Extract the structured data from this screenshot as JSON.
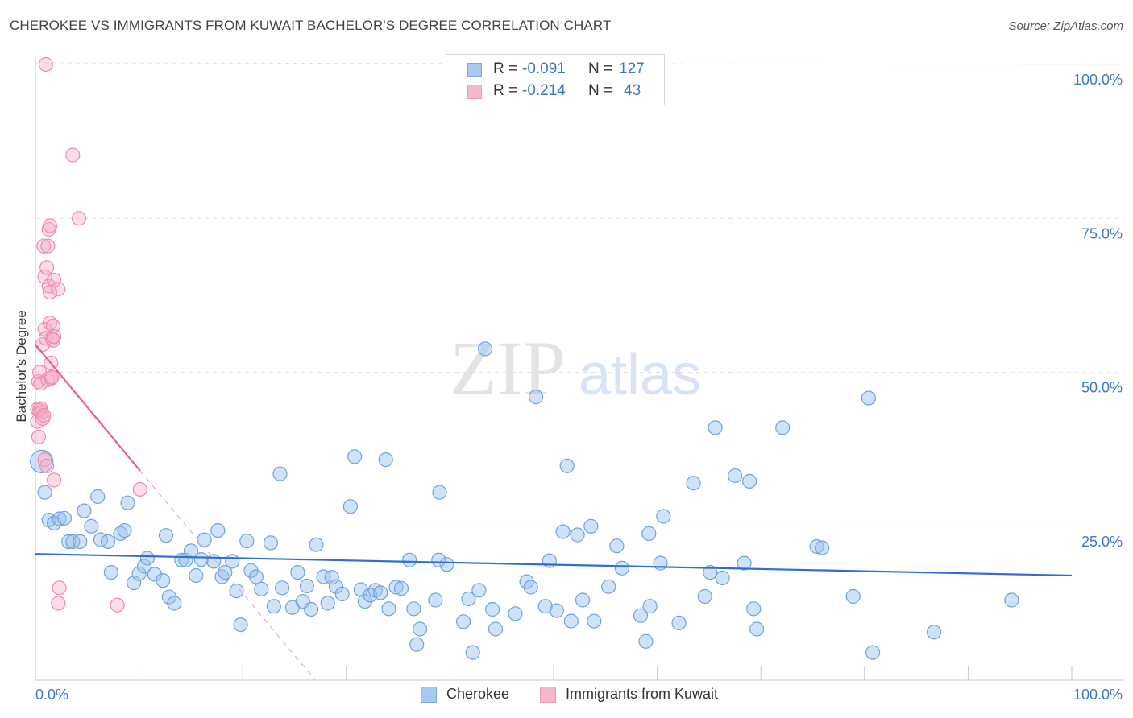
{
  "title": "CHEROKEE VS IMMIGRANTS FROM KUWAIT BACHELOR'S DEGREE CORRELATION CHART",
  "source": "Source: ZipAtlas.com",
  "watermark": {
    "zip": "ZIP",
    "atlas": "atlas"
  },
  "stats": [
    {
      "r_label": "R =",
      "r_value": "-0.091",
      "n_label": "N =",
      "n_value": "127",
      "color": "#a9c8ee"
    },
    {
      "r_label": "R =",
      "r_value": "-0.214",
      "n_label": "N =",
      "n_value": "43",
      "color": "#f5b8c9"
    }
  ],
  "legend": [
    {
      "label": "Cherokee",
      "color": "#a9c8ee"
    },
    {
      "label": "Immigrants from Kuwait",
      "color": "#f5b8c9"
    }
  ],
  "chart_data": {
    "type": "scatter",
    "ylabel": "Bachelor's Degree",
    "xlim": [
      0,
      100
    ],
    "ylim": [
      0,
      100
    ],
    "x_tick_labels": [
      "0.0%",
      "100.0%"
    ],
    "y_tick_labels": [
      "25.0%",
      "50.0%",
      "75.0%",
      "100.0%"
    ],
    "y_ticks": [
      25,
      50,
      75,
      100
    ],
    "series": [
      {
        "name": "Cherokee",
        "color": "#6fa3e0",
        "trend": {
          "x0": 0,
          "y0": 20.5,
          "x1": 100,
          "y1": 17.0
        },
        "points": [
          [
            0.6,
            35.5
          ],
          [
            0.9,
            30.5
          ],
          [
            1.3,
            26
          ],
          [
            1.8,
            25.5
          ],
          [
            2.3,
            26.2
          ],
          [
            2.8,
            26.3
          ],
          [
            3.2,
            22.5
          ],
          [
            3.6,
            22.5
          ],
          [
            4.3,
            22.5
          ],
          [
            4.7,
            27.5
          ],
          [
            5.4,
            25
          ],
          [
            6,
            29.8
          ],
          [
            6.3,
            22.8
          ],
          [
            7,
            22.5
          ],
          [
            7.3,
            17.5
          ],
          [
            8.2,
            23.8
          ],
          [
            8.6,
            24.3
          ],
          [
            8.9,
            28.8
          ],
          [
            9.5,
            15.8
          ],
          [
            10,
            17.3
          ],
          [
            10.5,
            18.5
          ],
          [
            10.8,
            19.8
          ],
          [
            11.5,
            17.2
          ],
          [
            12.3,
            16.2
          ],
          [
            12.6,
            23.5
          ],
          [
            12.9,
            13.5
          ],
          [
            13.4,
            12.5
          ],
          [
            14.1,
            19.5
          ],
          [
            14.5,
            19.5
          ],
          [
            15,
            21
          ],
          [
            15.5,
            17
          ],
          [
            16,
            19.6
          ],
          [
            16.3,
            22.8
          ],
          [
            17.2,
            19.3
          ],
          [
            17.6,
            24.3
          ],
          [
            18,
            16.8
          ],
          [
            18.3,
            17.5
          ],
          [
            19,
            19.3
          ],
          [
            19.4,
            14.5
          ],
          [
            19.8,
            9
          ],
          [
            20.4,
            22.6
          ],
          [
            20.8,
            17.8
          ],
          [
            21.3,
            16.8
          ],
          [
            21.8,
            14.8
          ],
          [
            22.7,
            22.3
          ],
          [
            23,
            12
          ],
          [
            23.6,
            33.5
          ],
          [
            23.8,
            15
          ],
          [
            24.8,
            11.8
          ],
          [
            25.3,
            17.5
          ],
          [
            25.8,
            12.8
          ],
          [
            26.2,
            15.3
          ],
          [
            26.6,
            11.5
          ],
          [
            27.1,
            22
          ],
          [
            27.8,
            16.8
          ],
          [
            28.2,
            12.5
          ],
          [
            28.6,
            16.7
          ],
          [
            29,
            15.2
          ],
          [
            29.6,
            14
          ],
          [
            30.4,
            28.2
          ],
          [
            30.8,
            36.3
          ],
          [
            31.4,
            14.7
          ],
          [
            31.8,
            12.8
          ],
          [
            32.3,
            13.8
          ],
          [
            32.8,
            14.6
          ],
          [
            33.3,
            14.2
          ],
          [
            33.8,
            35.8
          ],
          [
            34.1,
            11.6
          ],
          [
            34.8,
            15.1
          ],
          [
            35.3,
            14.9
          ],
          [
            36.1,
            19.5
          ],
          [
            36.5,
            11.6
          ],
          [
            36.8,
            5.8
          ],
          [
            37.1,
            8.3
          ],
          [
            38.6,
            13
          ],
          [
            38.9,
            19.5
          ],
          [
            39,
            30.5
          ],
          [
            39.7,
            18.8
          ],
          [
            41.3,
            9.5
          ],
          [
            41.8,
            13.2
          ],
          [
            42.2,
            4.5
          ],
          [
            42.8,
            14.6
          ],
          [
            43.4,
            53.8
          ],
          [
            44.1,
            11.5
          ],
          [
            44.4,
            8.3
          ],
          [
            46.3,
            10.8
          ],
          [
            47.4,
            16
          ],
          [
            47.8,
            15.1
          ],
          [
            48.3,
            46
          ],
          [
            49.2,
            12
          ],
          [
            49.6,
            19.4
          ],
          [
            50.3,
            11.3
          ],
          [
            50.9,
            24.1
          ],
          [
            51.3,
            34.8
          ],
          [
            51.7,
            9.6
          ],
          [
            52.3,
            23.6
          ],
          [
            52.8,
            13
          ],
          [
            53.6,
            25
          ],
          [
            53.9,
            9.6
          ],
          [
            55.3,
            15.2
          ],
          [
            56.1,
            21.8
          ],
          [
            56.6,
            18.2
          ],
          [
            58.4,
            10.5
          ],
          [
            58.9,
            6.3
          ],
          [
            59.2,
            23.8
          ],
          [
            59.3,
            12
          ],
          [
            60.3,
            19
          ],
          [
            60.6,
            26.6
          ],
          [
            62.1,
            9.3
          ],
          [
            63.5,
            32
          ],
          [
            64.6,
            13.6
          ],
          [
            65.1,
            17.5
          ],
          [
            65.6,
            41
          ],
          [
            66.3,
            16.6
          ],
          [
            67.5,
            33.2
          ],
          [
            68.4,
            19
          ],
          [
            68.9,
            32.3
          ],
          [
            69.3,
            11.6
          ],
          [
            69.6,
            8.3
          ],
          [
            72.1,
            41
          ],
          [
            75.4,
            21.7
          ],
          [
            75.9,
            21.5
          ],
          [
            78.9,
            13.6
          ],
          [
            80.4,
            45.8
          ],
          [
            80.8,
            4.5
          ],
          [
            86.7,
            7.8
          ],
          [
            94.2,
            13
          ]
        ]
      },
      {
        "name": "Immigrants from Kuwait",
        "color": "#f08aaa",
        "trend": {
          "x0": 0,
          "y0": 54.5,
          "x1": 10.1,
          "y1": 34.0,
          "dashed_x1": 27,
          "dashed_y1": 0
        },
        "points": [
          [
            0.2,
            44
          ],
          [
            0.2,
            42
          ],
          [
            0.3,
            39.5
          ],
          [
            0.3,
            48.5
          ],
          [
            0.4,
            43.8
          ],
          [
            0.4,
            50
          ],
          [
            0.5,
            44.1
          ],
          [
            0.5,
            48.2
          ],
          [
            0.6,
            43.5
          ],
          [
            0.7,
            42.5
          ],
          [
            0.7,
            54.5
          ],
          [
            0.8,
            43
          ],
          [
            0.8,
            70.5
          ],
          [
            0.9,
            65.5
          ],
          [
            0.9,
            57
          ],
          [
            0.9,
            35.8
          ],
          [
            1,
            55.5
          ],
          [
            1,
            100
          ],
          [
            1.1,
            34.8
          ],
          [
            1.1,
            67
          ],
          [
            1.2,
            70.5
          ],
          [
            1.2,
            48.8
          ],
          [
            1.3,
            73.2
          ],
          [
            1.3,
            64
          ],
          [
            1.4,
            73.8
          ],
          [
            1.4,
            63
          ],
          [
            1.4,
            58
          ],
          [
            1.5,
            51.5
          ],
          [
            1.5,
            49
          ],
          [
            1.6,
            49.2
          ],
          [
            1.6,
            55.5
          ],
          [
            1.7,
            57.5
          ],
          [
            1.7,
            55.2
          ],
          [
            1.8,
            65
          ],
          [
            1.8,
            55.8
          ],
          [
            1.8,
            32.5
          ],
          [
            2.2,
            63.5
          ],
          [
            2.2,
            12.5
          ],
          [
            2.3,
            15
          ],
          [
            3.6,
            85.3
          ],
          [
            4.2,
            75
          ],
          [
            7.9,
            12.2
          ],
          [
            10.1,
            31
          ]
        ]
      }
    ]
  }
}
